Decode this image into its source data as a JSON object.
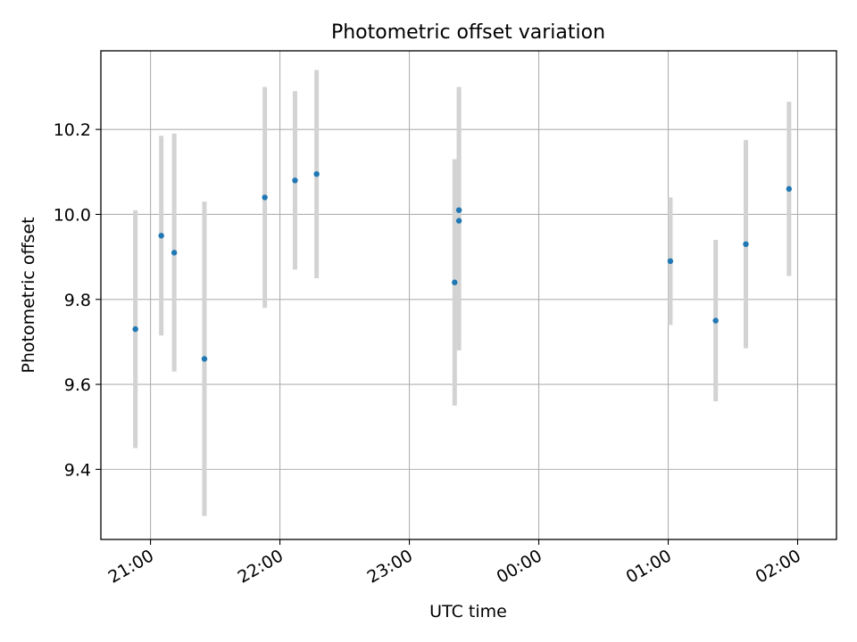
{
  "chart_data": {
    "type": "scatter",
    "title": "Photometric offset variation",
    "xlabel": "UTC time",
    "ylabel": "Photometric offset",
    "x_unit": "UTC time",
    "xlim": [
      "20:37",
      "02:18"
    ],
    "ylim": [
      9.235,
      10.385
    ],
    "x_ticks": [
      "21:00",
      "22:00",
      "23:00",
      "00:00",
      "01:00",
      "02:00"
    ],
    "y_ticks": [
      9.4,
      9.6,
      9.8,
      10.0,
      10.2
    ],
    "grid": true,
    "marker_color": "#1f77b4",
    "errorbar_color": "#d3d3d3",
    "points": [
      {
        "time": "20:53",
        "y": 9.73,
        "err": 0.28
      },
      {
        "time": "21:05",
        "y": 9.95,
        "err": 0.235
      },
      {
        "time": "21:11",
        "y": 9.91,
        "err": 0.28
      },
      {
        "time": "21:25",
        "y": 9.66,
        "err": 0.37
      },
      {
        "time": "21:53",
        "y": 10.04,
        "err": 0.26
      },
      {
        "time": "22:07",
        "y": 10.08,
        "err": 0.21
      },
      {
        "time": "22:17",
        "y": 10.095,
        "err": 0.245
      },
      {
        "time": "23:21",
        "y": 9.84,
        "err": 0.29
      },
      {
        "time": "23:23",
        "y": 10.01,
        "err": 0.29
      },
      {
        "time": "23:23",
        "y": 9.985,
        "err": 0.305
      },
      {
        "time": "01:01",
        "y": 9.89,
        "err": 0.15
      },
      {
        "time": "01:22",
        "y": 9.75,
        "err": 0.19
      },
      {
        "time": "01:36",
        "y": 9.93,
        "err": 0.245
      },
      {
        "time": "01:56",
        "y": 10.06,
        "err": 0.205
      }
    ]
  }
}
